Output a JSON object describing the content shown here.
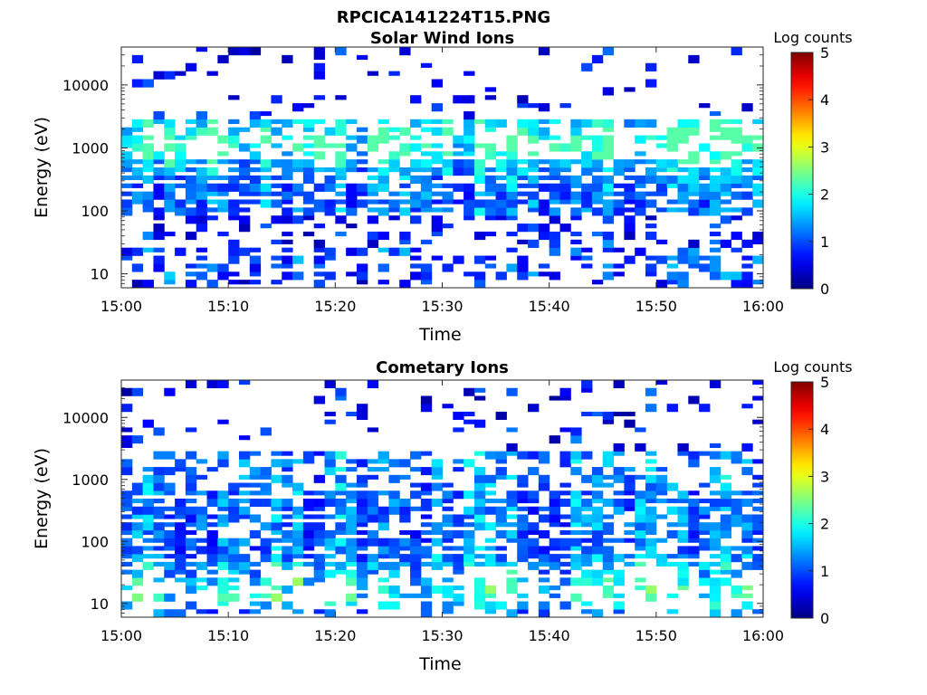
{
  "figure_title": "RPCICA141224T15.PNG",
  "chart_data": [
    {
      "type": "heatmap",
      "title": "Solar Wind Ions",
      "xlabel": "Time",
      "ylabel": "Energy (eV)",
      "y_scale": "log",
      "x_ticks": [
        "15:00",
        "15:10",
        "15:20",
        "15:30",
        "15:40",
        "15:50",
        "16:00"
      ],
      "y_ticks": [
        "10",
        "100",
        "1000",
        "10000"
      ],
      "xlim": [
        "15:00",
        "16:00"
      ],
      "ylim": [
        6,
        40000
      ],
      "colorbar": {
        "label": "Log counts",
        "ticks": [
          "0",
          "1",
          "2",
          "3",
          "4",
          "5"
        ],
        "range": [
          0,
          5
        ],
        "colormap": "jet"
      },
      "approx_profile": {
        "low_level_energy_eV": [
          8,
          30
        ],
        "bulk_energy_eV": [
          80,
          700
        ],
        "peak_energy_eV": 1200,
        "typical_log_counts": [
          0.5,
          2
        ]
      },
      "seed": 7
    },
    {
      "type": "heatmap",
      "title": "Cometary Ions",
      "xlabel": "Time",
      "ylabel": "Energy (eV)",
      "y_scale": "log",
      "x_ticks": [
        "15:00",
        "15:10",
        "15:20",
        "15:30",
        "15:40",
        "15:50",
        "16:00"
      ],
      "y_ticks": [
        "10",
        "100",
        "1000",
        "10000"
      ],
      "xlim": [
        "15:00",
        "16:00"
      ],
      "ylim": [
        6,
        40000
      ],
      "colorbar": {
        "label": "Log counts",
        "ticks": [
          "0",
          "1",
          "2",
          "3",
          "4",
          "5"
        ],
        "range": [
          0,
          5
        ],
        "colormap": "jet"
      },
      "approx_profile": {
        "low_level_energy_eV": [
          8,
          40
        ],
        "bulk_energy_eV": [
          40,
          600
        ],
        "peak_energy_eV": 15,
        "typical_log_counts": [
          0.5,
          3
        ]
      },
      "seed": 23
    }
  ]
}
